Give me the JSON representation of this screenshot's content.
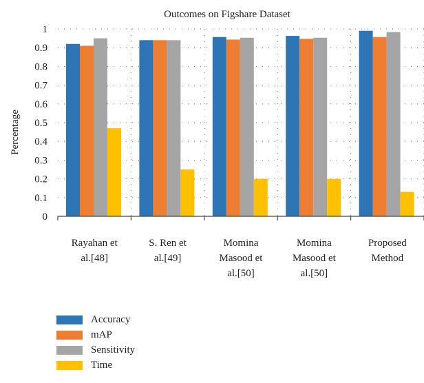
{
  "chart_data": {
    "type": "bar",
    "title": "Outcomes on Figshare Dataset",
    "ylabel": "Percentage",
    "xlabel": "",
    "ylim": [
      0,
      1
    ],
    "yticks": [
      "0",
      "0.1",
      "0.2",
      "0.3",
      "0.4",
      "0.5",
      "0.6",
      "0.7",
      "0.8",
      "0.9",
      "1"
    ],
    "grid": "dotted",
    "legend_position": "bottom-left",
    "categories": [
      [
        "Rayahan et",
        "al.[48]"
      ],
      [
        "S. Ren et",
        "al.[49]"
      ],
      [
        "Momina",
        "Masood et",
        "al.[50]"
      ],
      [
        "Momina",
        "Masood et",
        "al.[50]"
      ],
      [
        "Proposed",
        "Method"
      ]
    ],
    "series": [
      {
        "name": "Accuracy",
        "color": "#2e75b6",
        "values": [
          0.92,
          0.94,
          0.957,
          0.963,
          0.99
        ]
      },
      {
        "name": "mAP",
        "color": "#ed7d31",
        "values": [
          0.91,
          0.94,
          0.943,
          0.947,
          0.957
        ]
      },
      {
        "name": "Sensitivity",
        "color": "#a5a5a5",
        "values": [
          0.95,
          0.94,
          0.953,
          0.953,
          0.983
        ]
      },
      {
        "name": "Time",
        "color": "#ffc000",
        "values": [
          0.47,
          0.25,
          0.2,
          0.2,
          0.13
        ]
      }
    ]
  }
}
